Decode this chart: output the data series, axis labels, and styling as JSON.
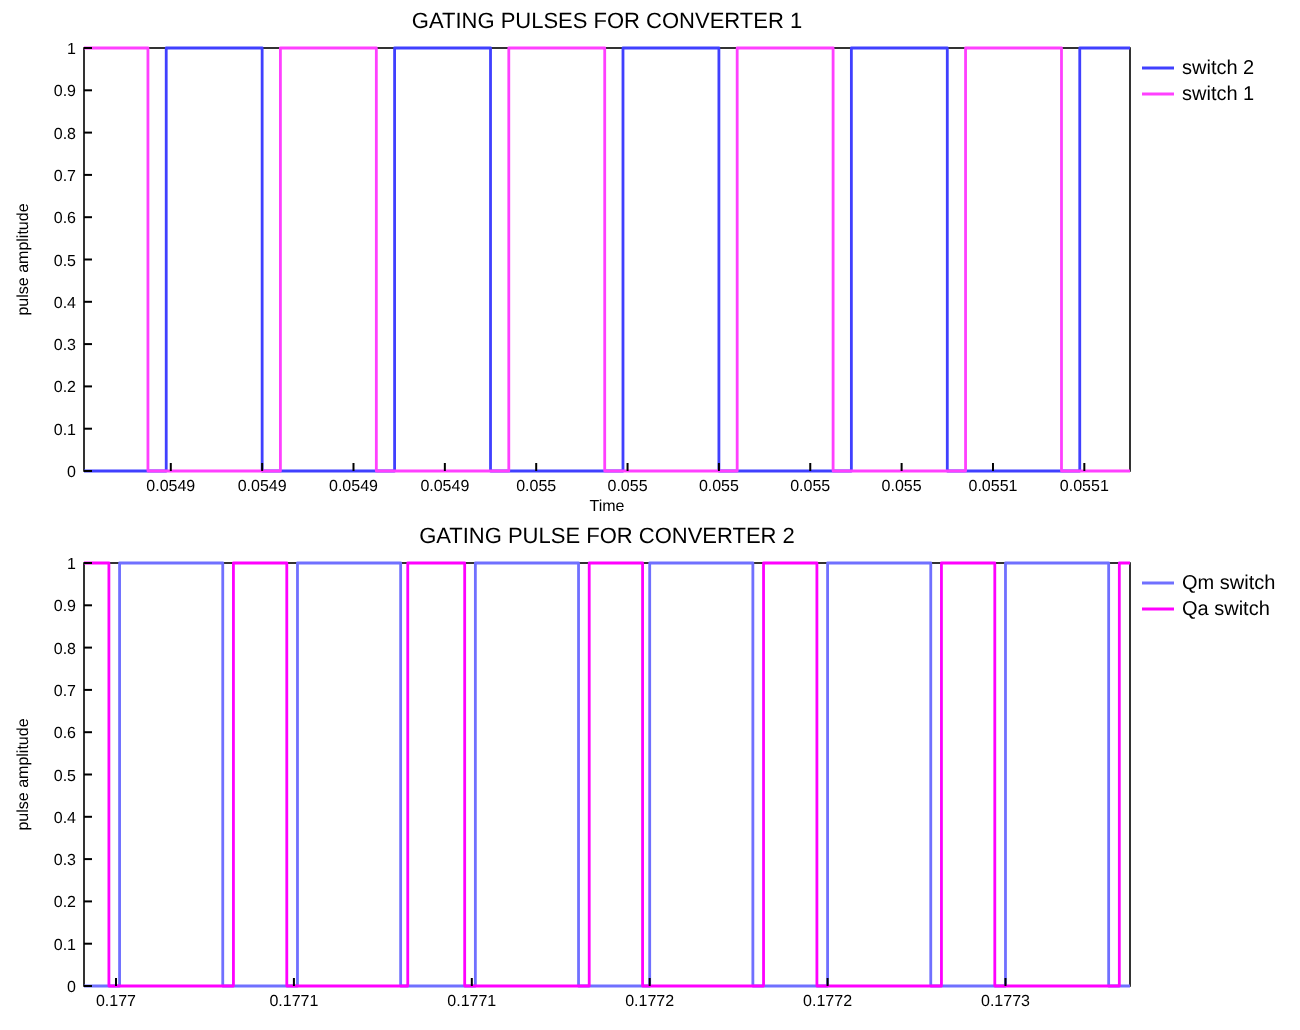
{
  "chart_data": [
    {
      "type": "step",
      "title": "GATING PULSES FOR CONVERTER 1",
      "xlabel": "Time",
      "ylabel": "pulse amplitude",
      "xlim": [
        0.054861,
        0.05509
      ],
      "xticks": [
        {
          "value": 0.05488,
          "label": "0.0549"
        },
        {
          "value": 0.0549,
          "label": "0.0549"
        },
        {
          "value": 0.05492,
          "label": "0.0549"
        },
        {
          "value": 0.05494,
          "label": "0.0549"
        },
        {
          "value": 0.05496,
          "label": "0.055"
        },
        {
          "value": 0.05498,
          "label": "0.055"
        },
        {
          "value": 0.055,
          "label": "0.055"
        },
        {
          "value": 0.05502,
          "label": "0.055"
        },
        {
          "value": 0.05504,
          "label": "0.055"
        },
        {
          "value": 0.05506,
          "label": "0.0551"
        },
        {
          "value": 0.05508,
          "label": "0.0551"
        }
      ],
      "ylim": [
        0,
        1
      ],
      "yticks": [
        0,
        0.1,
        0.2,
        0.3,
        0.4,
        0.5,
        0.6,
        0.7,
        0.8,
        0.9,
        1
      ],
      "legend": "right",
      "grid": false,
      "series": [
        {
          "name": "switch 2",
          "color": "#4040ff",
          "x": [
            0.054861,
            0.054879,
            0.0549,
            0.054929,
            0.05495,
            0.054979,
            0.055,
            0.055029,
            0.05505,
            0.055079,
            0.05509
          ],
          "values": [
            0,
            1,
            0,
            1,
            0,
            1,
            0,
            1,
            0,
            1,
            1
          ]
        },
        {
          "name": "switch 1",
          "color": "#ff40ff",
          "x": [
            0.054861,
            0.054875,
            0.054904,
            0.054925,
            0.054954,
            0.054975,
            0.055004,
            0.055025,
            0.055054,
            0.055075,
            0.05509
          ],
          "values": [
            1,
            0,
            1,
            0,
            1,
            0,
            1,
            0,
            1,
            0,
            0
          ]
        }
      ]
    },
    {
      "type": "step",
      "title": "GATING PULSE FOR CONVERTER 2",
      "ylabel": "pulse amplitude",
      "xlim": [
        0.176991,
        0.177285
      ],
      "xticks": [
        {
          "value": 0.177,
          "label": "0.177"
        },
        {
          "value": 0.17705,
          "label": "0.1771"
        },
        {
          "value": 0.1771,
          "label": "0.1771"
        },
        {
          "value": 0.17715,
          "label": "0.1772"
        },
        {
          "value": 0.1772,
          "label": "0.1772"
        },
        {
          "value": 0.17725,
          "label": "0.1773"
        }
      ],
      "ylim": [
        0,
        1
      ],
      "yticks": [
        0,
        0.1,
        0.2,
        0.3,
        0.4,
        0.5,
        0.6,
        0.7,
        0.8,
        0.9,
        1
      ],
      "legend": "right",
      "grid": false,
      "series": [
        {
          "name": "Qm switch",
          "color": "#7070ff",
          "x": [
            0.176991,
            0.177001,
            0.17703,
            0.177051,
            0.17708,
            0.177101,
            0.17713,
            0.17715,
            0.177179,
            0.1772,
            0.177229,
            0.17725,
            0.177279,
            0.177285
          ],
          "values": [
            0,
            1,
            0,
            1,
            0,
            1,
            0,
            1,
            0,
            1,
            0,
            1,
            0,
            0
          ]
        },
        {
          "name": "Qa switch",
          "color": "#ff00ff",
          "x": [
            0.176991,
            0.176998,
            0.177033,
            0.177048,
            0.177082,
            0.177098,
            0.177133,
            0.177148,
            0.177182,
            0.177197,
            0.177232,
            0.177247,
            0.177282,
            0.177285
          ],
          "values": [
            1,
            0,
            1,
            0,
            1,
            0,
            1,
            0,
            1,
            0,
            1,
            0,
            1,
            1
          ]
        }
      ]
    }
  ]
}
